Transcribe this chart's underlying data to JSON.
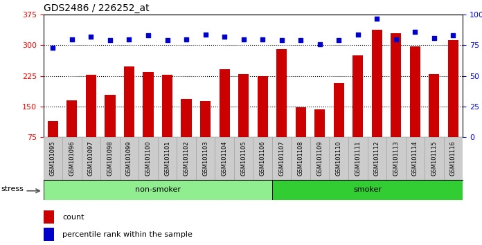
{
  "title": "GDS2486 / 226252_at",
  "categories": [
    "GSM101095",
    "GSM101096",
    "GSM101097",
    "GSM101098",
    "GSM101099",
    "GSM101100",
    "GSM101101",
    "GSM101102",
    "GSM101103",
    "GSM101104",
    "GSM101105",
    "GSM101106",
    "GSM101107",
    "GSM101108",
    "GSM101109",
    "GSM101110",
    "GSM101111",
    "GSM101112",
    "GSM101113",
    "GSM101114",
    "GSM101115",
    "GSM101116"
  ],
  "bar_values": [
    115,
    165,
    228,
    178,
    248,
    235,
    228,
    168,
    163,
    242,
    230,
    225,
    290,
    148,
    143,
    207,
    275,
    338,
    330,
    297,
    230,
    313
  ],
  "scatter_values": [
    73,
    80,
    82,
    79,
    80,
    83,
    79,
    80,
    84,
    82,
    80,
    80,
    79,
    79,
    76,
    79,
    84,
    97,
    80,
    86,
    81,
    83
  ],
  "ylim_left": [
    75,
    375
  ],
  "ylim_right": [
    0,
    100
  ],
  "yticks_left": [
    75,
    150,
    225,
    300,
    375
  ],
  "yticks_right": [
    0,
    25,
    50,
    75,
    100
  ],
  "bar_color": "#CC0000",
  "scatter_color": "#0000CC",
  "non_smoker_color": "#90EE90",
  "smoker_color": "#32CD32",
  "non_smoker_count": 12,
  "smoker_count": 10,
  "group_label_nonsmoker": "non-smoker",
  "group_label_smoker": "smoker",
  "stress_label": "stress",
  "legend_count_label": "count",
  "legend_pct_label": "percentile rank within the sample",
  "grid_yticks": [
    150,
    225,
    300
  ],
  "title_fontsize": 10,
  "bar_width": 0.55
}
